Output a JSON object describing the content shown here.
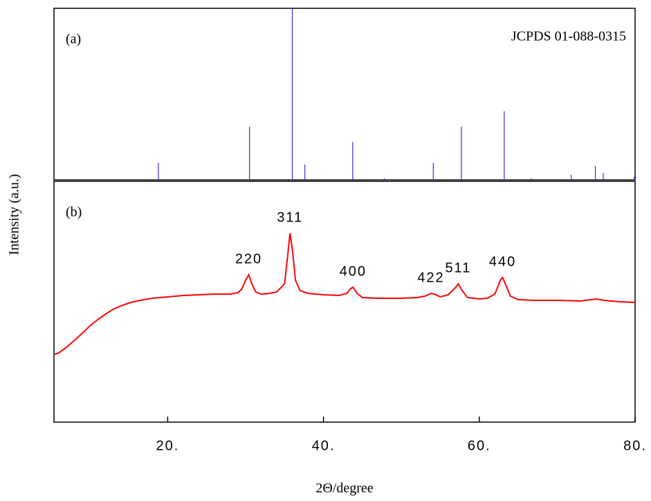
{
  "y_axis_label": "Intensity (a.u.)",
  "x_axis_label": "2Θ/degree",
  "chart_data": [
    {
      "type": "stem",
      "panel_label": "(a)",
      "title": "JCPDS 01-088-0315",
      "color": "#3a3adf",
      "x": [
        18.8,
        30.5,
        36.0,
        37.6,
        43.75,
        47.8,
        54.1,
        57.7,
        63.2,
        66.7,
        71.8,
        74.9,
        75.9,
        79.9
      ],
      "values": [
        10,
        31,
        100,
        9,
        22,
        1,
        10,
        31,
        40,
        1,
        3,
        8,
        4,
        2
      ],
      "xlim": [
        5.4,
        80
      ],
      "ylim": [
        0,
        100
      ]
    },
    {
      "type": "line",
      "panel_label": "(b)",
      "color": "#ff0000",
      "x": [
        5.5,
        6,
        7,
        8,
        9,
        10,
        11,
        12,
        13,
        14,
        15,
        16,
        17,
        18,
        19,
        20,
        22,
        24,
        26,
        28,
        29,
        29.5,
        30,
        30.4,
        30.8,
        31.3,
        32,
        33,
        34,
        35,
        35.4,
        35.7,
        36.0,
        36.4,
        37,
        38,
        40,
        42,
        43,
        43.5,
        43.8,
        44.3,
        45,
        47,
        50,
        52,
        53,
        53.8,
        54.2,
        55,
        56,
        57,
        57.3,
        57.8,
        58.5,
        60,
        61,
        62,
        62.7,
        63.0,
        63.4,
        64,
        65,
        67,
        70,
        73,
        75,
        76,
        78,
        80
      ],
      "values": [
        98,
        100,
        108,
        118,
        128,
        139,
        148,
        156,
        163,
        168,
        172,
        175,
        177,
        179,
        180,
        181,
        183,
        184,
        185,
        185,
        187,
        192,
        205,
        213,
        200,
        188,
        185,
        186,
        188,
        200,
        240,
        273,
        250,
        205,
        190,
        186,
        184,
        183,
        186,
        193,
        195,
        186,
        180,
        179,
        179,
        180,
        182,
        186,
        185,
        181,
        184,
        195,
        200,
        190,
        180,
        178,
        179,
        185,
        205,
        209,
        198,
        182,
        177,
        176,
        176,
        175,
        178,
        176,
        174,
        173
      ],
      "xlim": [
        5.4,
        80
      ],
      "ylim": [
        0,
        348
      ],
      "xticks": [
        {
          "value": 20,
          "label": "20."
        },
        {
          "value": 40,
          "label": "40."
        },
        {
          "value": 60,
          "label": "60."
        },
        {
          "value": 80,
          "label": "80."
        }
      ],
      "annotations": [
        {
          "text": "220",
          "x": 30.4
        },
        {
          "text": "311",
          "x": 35.7
        },
        {
          "text": "400",
          "x": 43.8
        },
        {
          "text": "422",
          "x": 53.8
        },
        {
          "text": "511",
          "x": 57.3
        },
        {
          "text": "440",
          "x": 63.0
        }
      ]
    }
  ]
}
